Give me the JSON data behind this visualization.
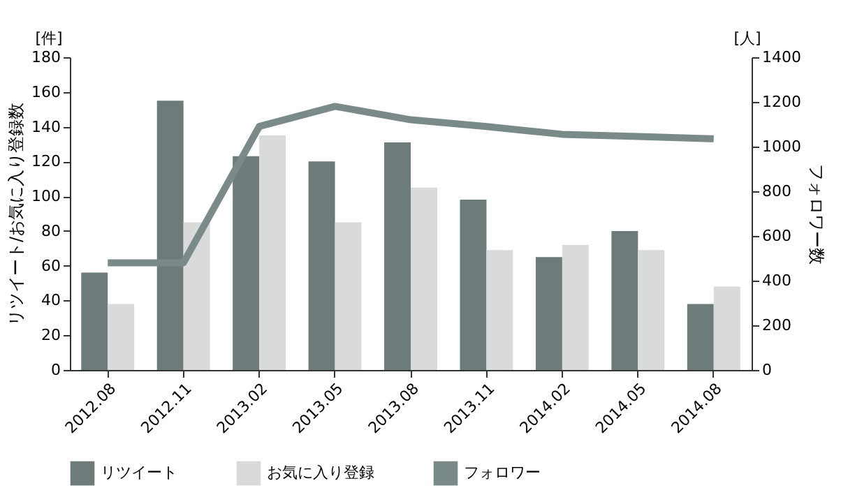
{
  "chart_data": {
    "type": "bar",
    "ylabel": "リツイート/お気に入り登録数",
    "y2label": "フォロワー数",
    "annotations": [
      "[件]",
      "[人]"
    ],
    "categories": [
      "2012.08",
      "2012.11",
      "2013.02",
      "2013.05",
      "2013.08",
      "2013.11",
      "2014.02",
      "2014.05",
      "2014.08"
    ],
    "series": [
      {
        "name": "リツイート",
        "color": "#6e7b7b",
        "values": [
          56,
          155,
          123,
          120,
          131,
          98,
          65,
          80,
          38
        ]
      },
      {
        "name": "お気に入り登録",
        "color": "#d9dbdb",
        "values": [
          38,
          85,
          135,
          85,
          105,
          69,
          72,
          69,
          48
        ]
      },
      {
        "name": "フォロワー",
        "type": "line",
        "axis": "y2",
        "color": "#7a8a88",
        "values": [
          480,
          480,
          1090,
          1180,
          1120,
          1090,
          1055,
          1045,
          1035
        ]
      }
    ],
    "ylim": [
      0,
      180
    ],
    "yticks": [
      0,
      20,
      40,
      60,
      80,
      100,
      120,
      140,
      160,
      180
    ],
    "y2lim": [
      0,
      1400
    ],
    "y2ticks": [
      0,
      200,
      400,
      600,
      800,
      1000,
      1200,
      1400
    ],
    "grid": false,
    "legend": "bottom"
  }
}
